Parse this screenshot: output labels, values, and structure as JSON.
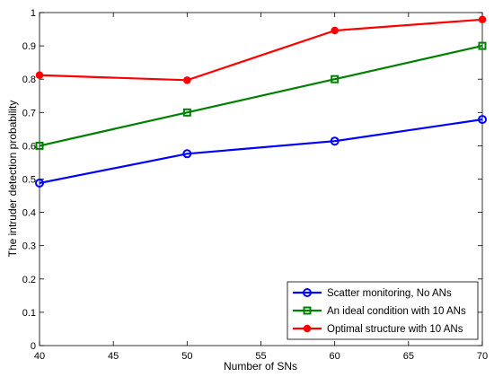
{
  "chart_data": {
    "type": "line",
    "title": "",
    "xlabel": "Number of SNs",
    "ylabel": "The intruder detection probability",
    "x": [
      40,
      50,
      60,
      70
    ],
    "xlim": [
      40,
      70
    ],
    "ylim": [
      0,
      1
    ],
    "xticks": [
      40,
      45,
      50,
      55,
      60,
      65,
      70
    ],
    "yticks": [
      0,
      0.1,
      0.2,
      0.3,
      0.4,
      0.5,
      0.6,
      0.7,
      0.8,
      0.9,
      1
    ],
    "ytick_labels": [
      "0",
      "0.1",
      "0.2",
      "0.3",
      "0.4",
      "0.5",
      "0.6",
      "0.7",
      "0.8",
      "0.9",
      "1"
    ],
    "grid": false,
    "legend_position": "bottom-right",
    "series": [
      {
        "name": "Scatter monitoring, No ANs",
        "values": [
          0.488,
          0.576,
          0.614,
          0.679
        ],
        "color": "#0000ff",
        "marker": "circle-open"
      },
      {
        "name": "An ideal condition with 10 ANs",
        "values": [
          0.6,
          0.7,
          0.8,
          0.9
        ],
        "color": "#008000",
        "marker": "square-open"
      },
      {
        "name": "Optimal structure with 10 ANs",
        "values": [
          0.812,
          0.797,
          0.946,
          0.979
        ],
        "color": "#ff0000",
        "marker": "circle-filled"
      }
    ]
  }
}
